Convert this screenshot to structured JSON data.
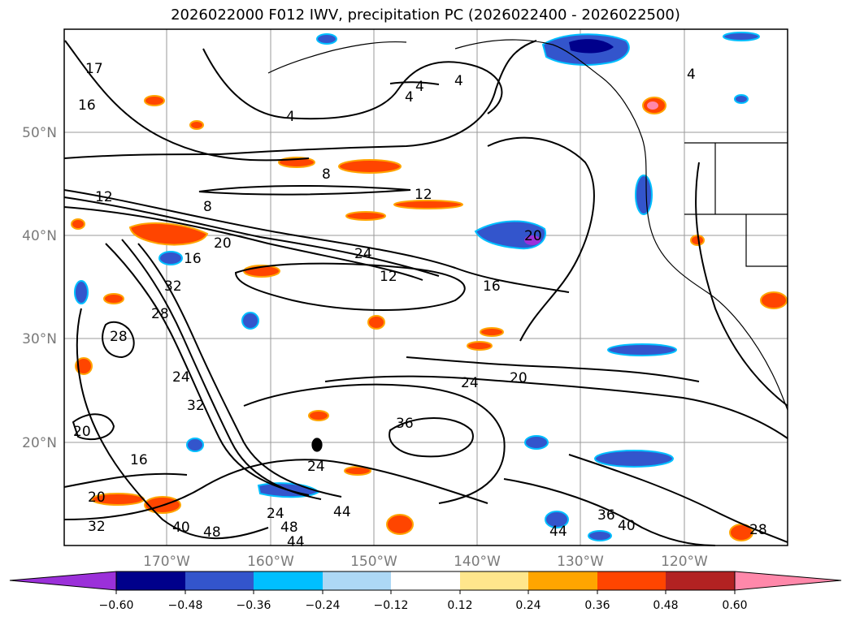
{
  "title": "2026022000 F012 IWV, precipitation PC (2026022400 - 2026022500)",
  "map": {
    "lat_labels": [
      "50°N",
      "40°N",
      "30°N",
      "20°N"
    ],
    "lon_labels": [
      "170°W",
      "160°W",
      "150°W",
      "140°W",
      "130°W",
      "120°W"
    ],
    "gridline_color": "#9a9a9a",
    "coastline_color": "#000000"
  },
  "contour_labels": [
    "4",
    "4",
    "4",
    "4",
    "16",
    "17",
    "12",
    "8",
    "8",
    "12",
    "20",
    "24",
    "12",
    "16",
    "16",
    "20",
    "28",
    "32",
    "28",
    "24",
    "24",
    "32",
    "20",
    "16",
    "36",
    "24",
    "20",
    "20",
    "32",
    "40",
    "48",
    "24",
    "44",
    "48",
    "44",
    "36",
    "40",
    "44",
    "28",
    "4"
  ],
  "colorbar": {
    "tick_labels": [
      "−0.60",
      "−0.48",
      "−0.36",
      "−0.24",
      "−0.12",
      "0.12",
      "0.24",
      "0.36",
      "0.48",
      "0.60"
    ],
    "bins": [
      {
        "label": "< -0.60",
        "color": "#9b30d9"
      },
      {
        "label": "-0.60 to -0.48",
        "color": "#00008b"
      },
      {
        "label": "-0.48 to -0.36",
        "color": "#3355cc"
      },
      {
        "label": "-0.36 to -0.24",
        "color": "#00bfff"
      },
      {
        "label": "-0.24 to -0.12",
        "color": "#add8f5"
      },
      {
        "label": "-0.12 to 0.12",
        "color": "#ffffff"
      },
      {
        "label": "0.12 to 0.24",
        "color": "#ffe68c"
      },
      {
        "label": "0.24 to 0.36",
        "color": "#ffa500"
      },
      {
        "label": "0.36 to 0.48",
        "color": "#ff4500"
      },
      {
        "label": "0.48 to 0.60",
        "color": "#b22222"
      },
      {
        "label": "> 0.60",
        "color": "#ff88aa"
      }
    ]
  }
}
